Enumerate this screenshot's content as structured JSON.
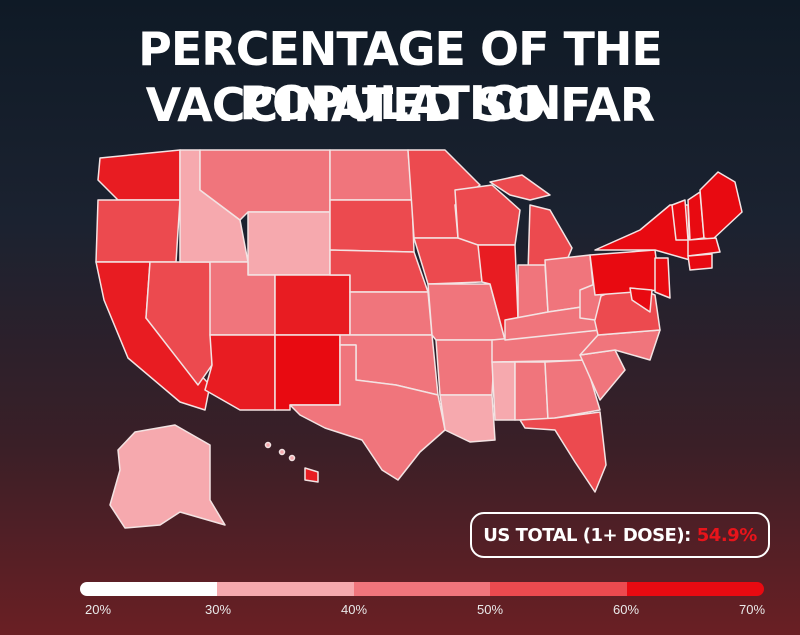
{
  "title": {
    "line1": "PERCENTAGE OF THE POPULATION",
    "line2": "VACCINATED SO FAR"
  },
  "total": {
    "label": "US TOTAL (1+ DOSE):",
    "value": "54.9%"
  },
  "legend": {
    "ticks": [
      "20%",
      "30%",
      "40%",
      "50%",
      "60%",
      "70%"
    ],
    "colors": [
      "#ffffff",
      "#f6a9ae",
      "#f0757c",
      "#ec4a4f",
      "#e80a11"
    ]
  },
  "map_colors": {
    "band_20_30": "#ffffff",
    "band_30_40": "#f6a9ae",
    "band_40_50": "#f0757c",
    "band_50_60": "#ec4a4f",
    "band_60_70": "#e80a11"
  }
}
